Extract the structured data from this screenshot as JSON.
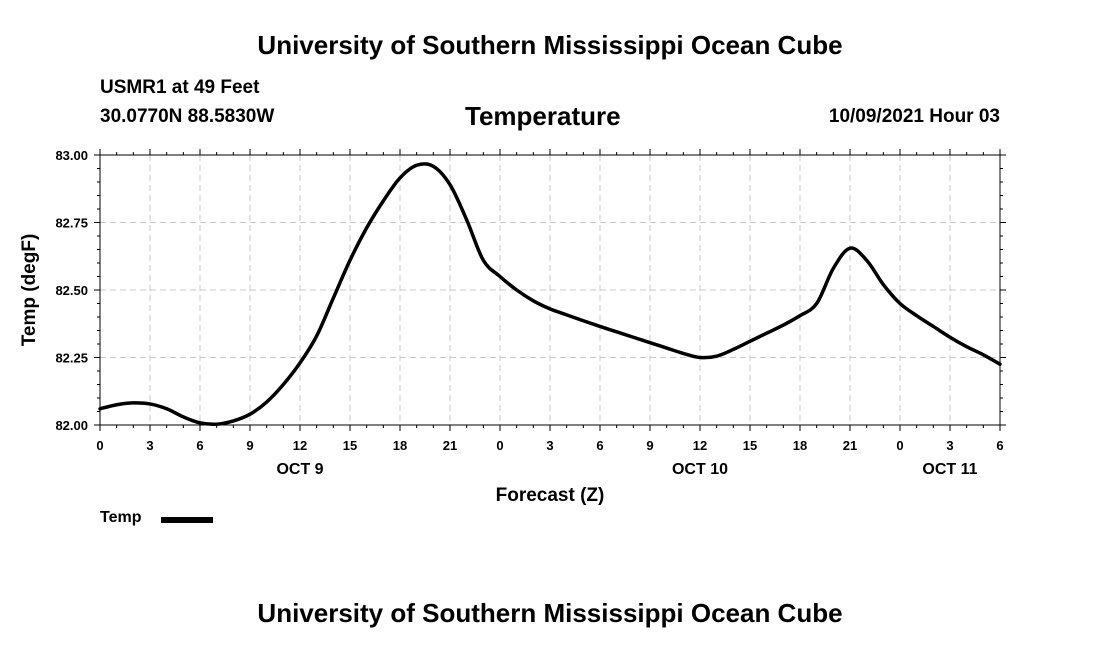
{
  "header": {
    "title": "University of Southern Mississippi Ocean Cube",
    "station": "USMR1 at 49 Feet",
    "coordinates": "30.0770N  88.5830W",
    "variable": "Temperature",
    "datetime": "10/09/2021 Hour 03"
  },
  "footer": {
    "title": "University of Southern Mississippi Ocean Cube"
  },
  "legend": {
    "label": "Temp"
  },
  "chart_data": {
    "type": "line",
    "title": "Temperature",
    "xlabel": "Forecast (Z)",
    "ylabel": "Temp (degF)",
    "x_unit": "hours since OCT 9 00Z",
    "xlim": [
      0,
      54
    ],
    "ylim": [
      82.0,
      83.0
    ],
    "x_ticks": [
      0,
      3,
      6,
      9,
      12,
      15,
      18,
      21,
      24,
      27,
      30,
      33,
      36,
      39,
      42,
      45,
      48,
      51,
      54
    ],
    "x_tick_labels": [
      "0",
      "3",
      "6",
      "9",
      "12",
      "15",
      "18",
      "21",
      "0",
      "3",
      "6",
      "9",
      "12",
      "15",
      "18",
      "21",
      "0",
      "3",
      "6"
    ],
    "y_ticks": [
      82.0,
      82.25,
      82.5,
      82.75,
      83.0
    ],
    "y_tick_labels": [
      "82.00",
      "82.25",
      "82.50",
      "82.75",
      "83.00"
    ],
    "day_labels": [
      {
        "x": 12,
        "label": "OCT 9"
      },
      {
        "x": 36,
        "label": "OCT 10"
      },
      {
        "x": 51,
        "label": "OCT 11"
      }
    ],
    "grid": true,
    "legend_position": "bottom-left",
    "series": [
      {
        "name": "Temp",
        "color": "#000000",
        "x": [
          0,
          1,
          2,
          3,
          4,
          5,
          6,
          7,
          8,
          9,
          10,
          11,
          12,
          13,
          14,
          15,
          16,
          17,
          18,
          19,
          20,
          21,
          22,
          23,
          24,
          25,
          26,
          27,
          28,
          29,
          30,
          31,
          32,
          33,
          34,
          35,
          36,
          37,
          38,
          39,
          40,
          41,
          42,
          43,
          44,
          45,
          46,
          47,
          48,
          49,
          50,
          51,
          52,
          53,
          54
        ],
        "y": [
          82.06,
          82.075,
          82.082,
          82.078,
          82.06,
          82.03,
          82.008,
          82.003,
          82.015,
          82.04,
          82.085,
          82.15,
          82.23,
          82.33,
          82.47,
          82.61,
          82.73,
          82.83,
          82.915,
          82.962,
          82.958,
          82.89,
          82.76,
          82.61,
          82.55,
          82.5,
          82.46,
          82.43,
          82.408,
          82.386,
          82.365,
          82.345,
          82.325,
          82.305,
          82.285,
          82.265,
          82.25,
          82.255,
          82.28,
          82.31,
          82.34,
          82.37,
          82.405,
          82.45,
          82.58,
          82.655,
          82.61,
          82.52,
          82.45,
          82.405,
          82.365,
          82.325,
          82.29,
          82.26,
          82.225
        ]
      }
    ]
  }
}
